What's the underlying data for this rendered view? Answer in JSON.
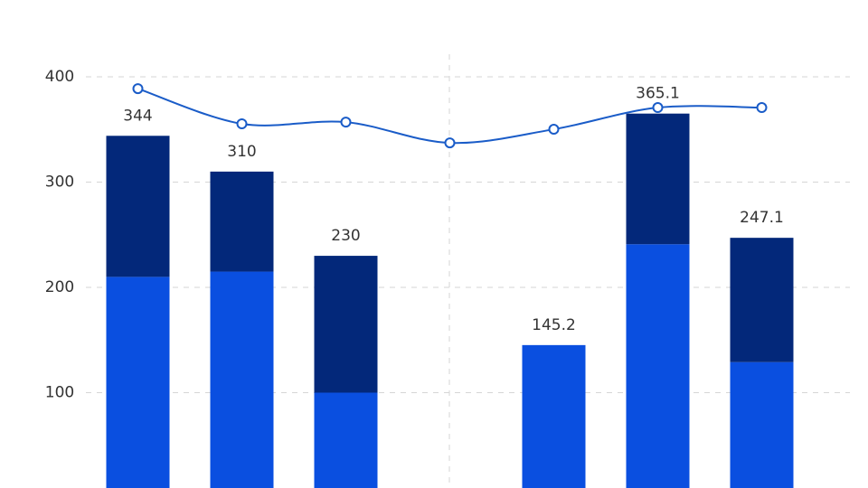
{
  "chart_data": {
    "type": "stacked-bar-line",
    "categories": [
      null,
      null,
      null,
      null,
      null,
      null,
      null
    ],
    "series": [
      {
        "color": "#0a4fe0",
        "values": [
          210,
          215,
          100,
          null,
          145.2,
          241,
          129
        ]
      },
      {
        "color": "#03287a",
        "values": [
          134,
          95,
          130,
          null,
          null,
          124.1,
          118.1
        ]
      },
      {
        "type": "line",
        "color": "#1a5cc8",
        "values": [
          388.8,
          355.4,
          357,
          337.3,
          350.2,
          370.8,
          370.8
        ]
      }
    ],
    "totals": [
      344,
      310,
      230,
      null,
      145.2,
      365.1,
      247.1
    ],
    "ylim": [
      0,
      473
    ],
    "yticks": [
      100,
      200,
      300,
      400
    ],
    "grid": true
  }
}
